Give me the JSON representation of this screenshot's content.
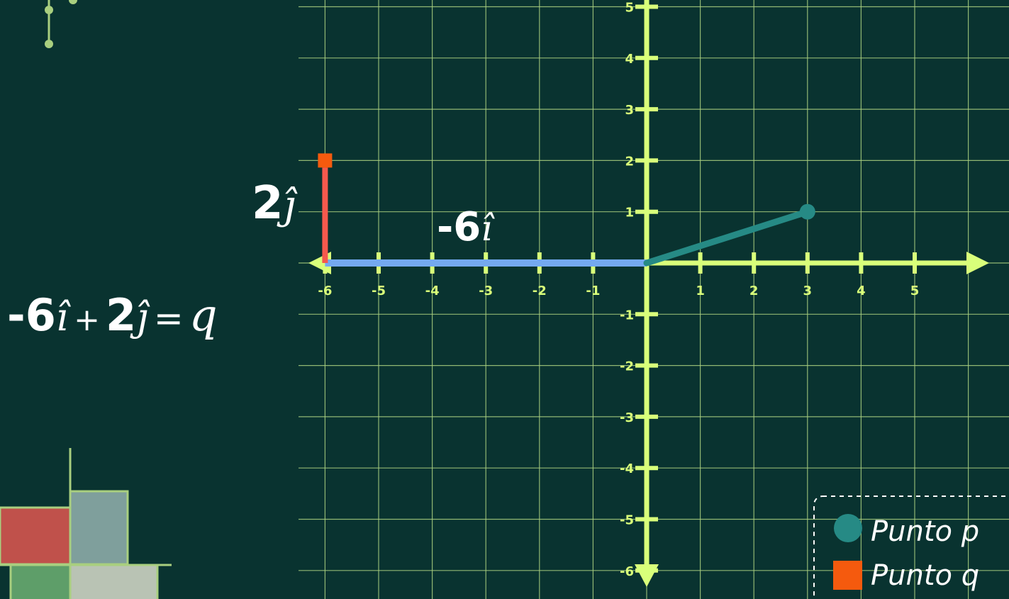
{
  "equation": {
    "coef_i": "-6",
    "i_hat": "î",
    "plus": "+",
    "coef_j": "2",
    "j_hat": "ĵ",
    "equals": "=",
    "result": "q"
  },
  "vector_labels": {
    "i_component": {
      "coef": "-6",
      "unit": "î"
    },
    "j_component": {
      "coef": "2",
      "unit": "ĵ"
    }
  },
  "axes": {
    "x_ticks": [
      "-6",
      "-5",
      "-4",
      "-3",
      "-2",
      "-1",
      "1",
      "2",
      "3",
      "4",
      "5"
    ],
    "y_ticks": [
      "5",
      "4",
      "3",
      "2",
      "1",
      "-1",
      "-2",
      "-3",
      "-4",
      "-5",
      "-6"
    ]
  },
  "points": {
    "p": {
      "x": 3,
      "y": 1
    },
    "q": {
      "x": -6,
      "y": 2
    }
  },
  "legend": {
    "items": [
      {
        "label": "Punto p",
        "color": "#268a85",
        "shape": "circle"
      },
      {
        "label": "Punto q",
        "color": "#f55a0e",
        "shape": "square"
      }
    ]
  },
  "colors": {
    "background": "#093330",
    "grid": "#a9cf7f",
    "axis": "#d9ff7a",
    "vector_i": "#74a9f0",
    "vector_j": "#f5594d",
    "vector_p": "#268a85",
    "point_q": "#f55a0e",
    "text": "#ffffff"
  }
}
